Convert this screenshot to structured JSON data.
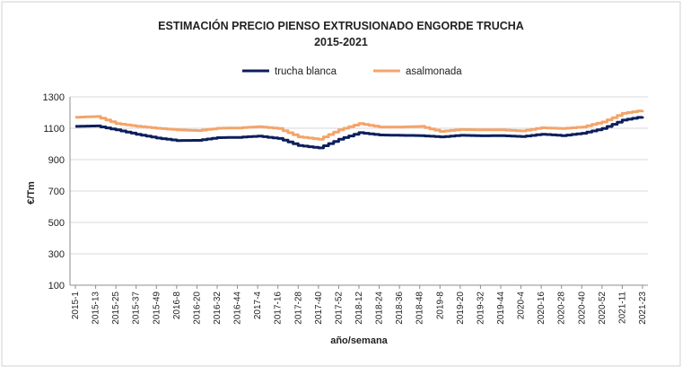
{
  "chart_data": {
    "type": "line",
    "title": "ESTIMACIÓN PRECIO PIENSO EXTRUSIONADO ENGORDE TRUCHA",
    "subtitle": "2015-2021",
    "xlabel": "año/semana",
    "ylabel": "€/Tm",
    "ylim": [
      100,
      1300
    ],
    "yticks": [
      100,
      300,
      500,
      700,
      900,
      1100,
      1300
    ],
    "grid": true,
    "legend": "top-center",
    "categories": [
      "2015-1",
      "2015-13",
      "2015-25",
      "2015-37",
      "2015-49",
      "2016-8",
      "2016-20",
      "2016-32",
      "2016-44",
      "2017-4",
      "2017-16",
      "2017-28",
      "2017-40",
      "2017-52",
      "2018-12",
      "2018-24",
      "2018-36",
      "2018-48",
      "2019-8",
      "2019-20",
      "2019-32",
      "2019-44",
      "2020-4",
      "2020-16",
      "2020-28",
      "2020-40",
      "2020-52",
      "2021-11",
      "2021-23"
    ],
    "series": [
      {
        "name": "trucha blanca",
        "color": "#0c1f5c",
        "values": [
          1112,
          1115,
          1090,
          1062,
          1038,
          1022,
          1023,
          1040,
          1042,
          1050,
          1035,
          990,
          975,
          1030,
          1072,
          1057,
          1055,
          1053,
          1045,
          1055,
          1052,
          1053,
          1047,
          1062,
          1053,
          1068,
          1098,
          1152,
          1175
        ]
      },
      {
        "name": "asalmonada",
        "color": "#f4a46a",
        "values": [
          1170,
          1175,
          1130,
          1113,
          1100,
          1090,
          1085,
          1100,
          1102,
          1110,
          1098,
          1045,
          1030,
          1090,
          1130,
          1108,
          1108,
          1112,
          1080,
          1092,
          1090,
          1090,
          1083,
          1103,
          1098,
          1108,
          1140,
          1195,
          1215
        ]
      }
    ]
  }
}
